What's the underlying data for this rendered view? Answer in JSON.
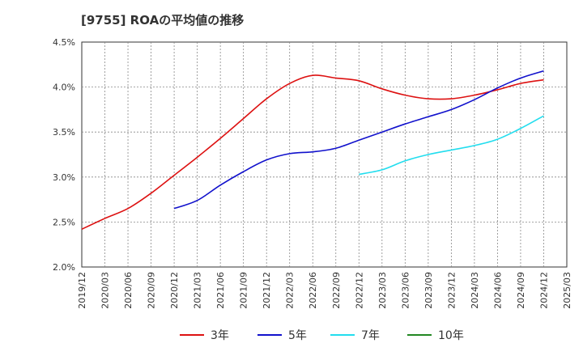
{
  "chart_data": {
    "type": "line",
    "title": "[9755]  ROAの平均値の推移",
    "ylim": [
      2.0,
      4.5
    ],
    "y_ticks": [
      "2.0%",
      "2.5%",
      "3.0%",
      "3.5%",
      "4.0%",
      "4.5%"
    ],
    "x_ticks": [
      "2019/12",
      "2020/03",
      "2020/06",
      "2020/09",
      "2020/12",
      "2021/03",
      "2021/06",
      "2021/09",
      "2021/12",
      "2022/03",
      "2022/06",
      "2022/09",
      "2022/12",
      "2023/03",
      "2023/06",
      "2023/09",
      "2023/12",
      "2024/03",
      "2024/06",
      "2024/09",
      "2024/12",
      "2025/03"
    ],
    "grid": true,
    "legend_position": "bottom",
    "series": [
      {
        "name": "3年",
        "color": "#dd1111",
        "x": [
          "2019/12",
          "2020/03",
          "2020/06",
          "2020/09",
          "2020/12",
          "2021/03",
          "2021/06",
          "2021/09",
          "2021/12",
          "2022/03",
          "2022/06",
          "2022/09",
          "2022/12",
          "2023/03",
          "2023/06",
          "2023/09",
          "2023/12",
          "2024/03",
          "2024/06",
          "2024/09",
          "2024/12"
        ],
        "values": [
          2.42,
          2.54,
          2.65,
          2.82,
          3.02,
          3.22,
          3.43,
          3.65,
          3.87,
          4.04,
          4.13,
          4.1,
          4.07,
          3.98,
          3.91,
          3.87,
          3.87,
          3.91,
          3.97,
          4.04,
          4.08
        ]
      },
      {
        "name": "5年",
        "color": "#1111cc",
        "x": [
          "2020/12",
          "2021/03",
          "2021/06",
          "2021/09",
          "2021/12",
          "2022/03",
          "2022/06",
          "2022/09",
          "2022/12",
          "2023/03",
          "2023/06",
          "2023/09",
          "2023/12",
          "2024/03",
          "2024/06",
          "2024/09",
          "2024/12"
        ],
        "values": [
          2.65,
          2.74,
          2.91,
          3.06,
          3.19,
          3.26,
          3.28,
          3.32,
          3.41,
          3.5,
          3.59,
          3.67,
          3.75,
          3.86,
          3.99,
          4.1,
          4.18
        ]
      },
      {
        "name": "7年",
        "color": "#22ddee",
        "x": [
          "2022/12",
          "2023/03",
          "2023/06",
          "2023/09",
          "2023/12",
          "2024/03",
          "2024/06",
          "2024/09",
          "2024/12"
        ],
        "values": [
          3.03,
          3.08,
          3.18,
          3.25,
          3.3,
          3.35,
          3.42,
          3.54,
          3.68
        ]
      },
      {
        "name": "10年",
        "color": "#228822",
        "x": [],
        "values": []
      }
    ]
  }
}
